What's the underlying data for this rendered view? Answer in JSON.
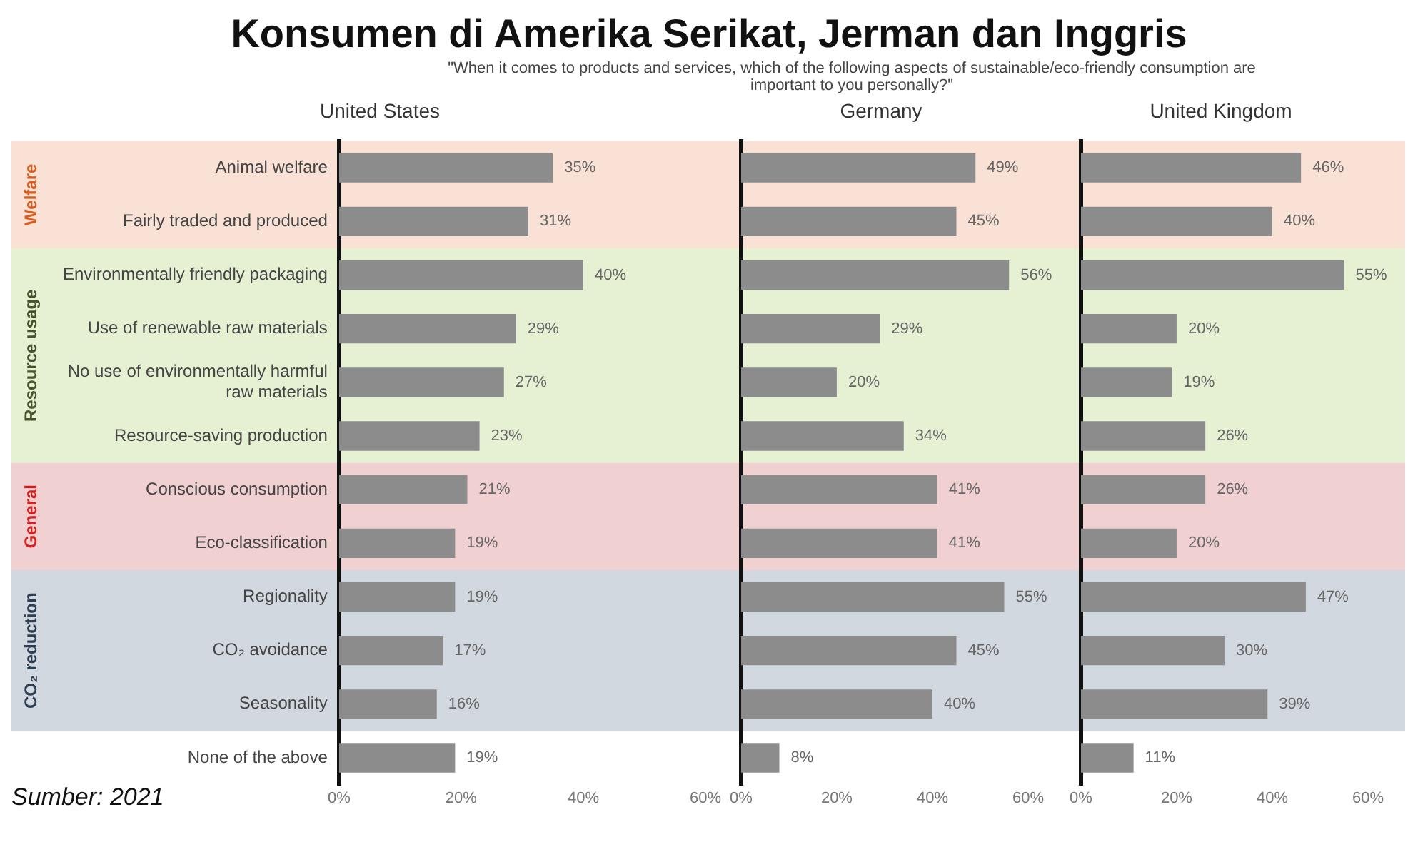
{
  "chart_data": [
    {
      "type": "other",
      "title": "Konsumen di Amerika Serikat, Jerman dan Inggris",
      "subtitle": "\"When it comes to products and services, which of the following aspects of sustainable/eco-friendly consumption are important to you personally?\"",
      "annotations": [
        "Sumber: 2021"
      ]
    },
    {
      "type": "bar",
      "orientation": "horizontal",
      "title": "United States",
      "categories": [
        "Animal welfare",
        "Fairly traded and produced",
        "Environmentally friendly packaging",
        "Use of renewable raw materials",
        "No use of environmentally harmful raw materials",
        "Resource-saving production",
        "Conscious consumption",
        "Eco-classification",
        "Regionality",
        "CO₂ avoidance",
        "Seasonality",
        "None of the above"
      ],
      "values": [
        35,
        31,
        40,
        29,
        27,
        23,
        21,
        19,
        19,
        17,
        16,
        19
      ],
      "value_labels": [
        "35%",
        "31%",
        "40%",
        "29%",
        "27%",
        "23%",
        "21%",
        "19%",
        "19%",
        "17%",
        "16%",
        "19%"
      ],
      "color": "#8c8c8c",
      "xlim": [
        0,
        60
      ],
      "xticks": [
        {
          "value": 0,
          "label": "0%"
        },
        {
          "value": 20,
          "label": "20%"
        },
        {
          "value": 40,
          "label": "40%"
        },
        {
          "value": 60,
          "label": "60%"
        }
      ],
      "grid": false,
      "legend": false,
      "bands": [
        {
          "axis": "y",
          "from": "Animal welfare",
          "to": "Fairly traded and produced",
          "label": "Welfare",
          "color": "#f9e1d5"
        },
        {
          "axis": "y",
          "from": "Environmentally friendly packaging",
          "to": "Resource-saving production",
          "label": "Resource usage",
          "color": "#e6f0d2"
        },
        {
          "axis": "y",
          "from": "Conscious consumption",
          "to": "Eco-classification",
          "label": "General",
          "color": "#f0d0d0"
        },
        {
          "axis": "y",
          "from": "Regionality",
          "to": "Seasonality",
          "label": "CO₂ reduction",
          "color": "#d2d8df"
        }
      ]
    },
    {
      "type": "bar",
      "orientation": "horizontal",
      "title": "Germany",
      "categories": [
        "Animal welfare",
        "Fairly traded and produced",
        "Environmentally friendly packaging",
        "Use of renewable raw materials",
        "No use of environmentally harmful raw materials",
        "Resource-saving production",
        "Conscious consumption",
        "Eco-classification",
        "Regionality",
        "CO₂ avoidance",
        "Seasonality",
        "None of the above"
      ],
      "values": [
        49,
        45,
        56,
        29,
        20,
        34,
        41,
        41,
        55,
        45,
        40,
        8
      ],
      "value_labels": [
        "49%",
        "45%",
        "56%",
        "29%",
        "20%",
        "34%",
        "41%",
        "41%",
        "55%",
        "45%",
        "40%",
        "8%"
      ],
      "color": "#8c8c8c",
      "xlim": [
        0,
        60
      ],
      "xticks": [
        {
          "value": 0,
          "label": "0%"
        },
        {
          "value": 20,
          "label": "20%"
        },
        {
          "value": 40,
          "label": "40%"
        },
        {
          "value": 60,
          "label": "60%"
        }
      ],
      "grid": false,
      "legend": false,
      "tick_labels": "x",
      "bands": [
        {
          "axis": "y",
          "from": "Animal welfare",
          "to": "Fairly traded and produced",
          "color": "#f9e1d5"
        },
        {
          "axis": "y",
          "from": "Environmentally friendly packaging",
          "to": "Resource-saving production",
          "color": "#e6f0d2"
        },
        {
          "axis": "y",
          "from": "Conscious consumption",
          "to": "Eco-classification",
          "color": "#f0d0d0"
        },
        {
          "axis": "y",
          "from": "Regionality",
          "to": "Seasonality",
          "color": "#d2d8df"
        }
      ]
    },
    {
      "type": "bar",
      "orientation": "horizontal",
      "title": "United Kingdom",
      "categories": [
        "Animal welfare",
        "Fairly traded and produced",
        "Environmentally friendly packaging",
        "Use of renewable raw materials",
        "No use of environmentally harmful raw materials",
        "Resource-saving production",
        "Conscious consumption",
        "Eco-classification",
        "Regionality",
        "CO₂ avoidance",
        "Seasonality",
        "None of the above"
      ],
      "values": [
        46,
        40,
        55,
        20,
        19,
        26,
        26,
        20,
        47,
        30,
        39,
        11
      ],
      "value_labels": [
        "46%",
        "40%",
        "55%",
        "20%",
        "19%",
        "26%",
        "26%",
        "20%",
        "47%",
        "30%",
        "39%",
        "11%"
      ],
      "color": "#8c8c8c",
      "xlim": [
        0,
        60
      ],
      "xticks": [
        {
          "value": 0,
          "label": "0%"
        },
        {
          "value": 20,
          "label": "20%"
        },
        {
          "value": 40,
          "label": "40%"
        },
        {
          "value": 60,
          "label": "60%"
        }
      ],
      "grid": false,
      "legend": false,
      "tick_labels": "x",
      "bands": [
        {
          "axis": "y",
          "from": "Animal welfare",
          "to": "Fairly traded and produced",
          "color": "#f9e1d5"
        },
        {
          "axis": "y",
          "from": "Environmentally friendly packaging",
          "to": "Resource-saving production",
          "color": "#e6f0d2"
        },
        {
          "axis": "y",
          "from": "Conscious consumption",
          "to": "Eco-classification",
          "color": "#f0d0d0"
        },
        {
          "axis": "y",
          "from": "Regionality",
          "to": "Seasonality",
          "color": "#d2d8df"
        }
      ]
    }
  ]
}
